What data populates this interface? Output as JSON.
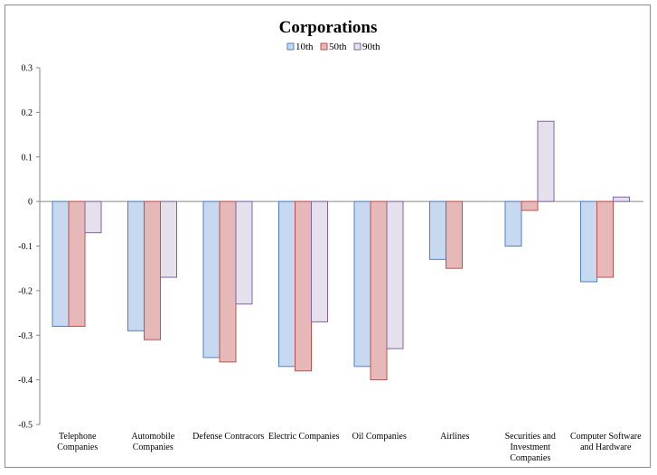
{
  "chart_data": {
    "type": "bar",
    "title": "Corporations",
    "xlabel": "",
    "ylabel": "",
    "ylim": [
      -0.5,
      0.3
    ],
    "yticks": [
      "0.3",
      "0.2",
      "0.1",
      "0",
      "-0.1",
      "-0.2",
      "-0.3",
      "-0.4",
      "-0.5"
    ],
    "ytick_values": [
      0.3,
      0.2,
      0.1,
      0,
      -0.1,
      -0.2,
      -0.3,
      -0.4,
      -0.5
    ],
    "grid": false,
    "legend_position": "top-center",
    "categories": [
      [
        "Telephone",
        "Companies"
      ],
      [
        "Automobile",
        "Companies"
      ],
      [
        "Defense Contracors"
      ],
      [
        "Electric Companies"
      ],
      [
        "Oil Companies"
      ],
      [
        "Airlines"
      ],
      [
        "Securities and",
        "Investment",
        "Companies"
      ],
      [
        "Computer Software",
        "and Hardware"
      ]
    ],
    "series": [
      {
        "name": "10th",
        "fill": "#c6d9f1",
        "stroke": "#4f81bd",
        "values": [
          -0.28,
          -0.29,
          -0.35,
          -0.37,
          -0.37,
          -0.13,
          -0.1,
          -0.18
        ]
      },
      {
        "name": "50th",
        "fill": "#e6b9b8",
        "stroke": "#c0504d",
        "values": [
          -0.28,
          -0.31,
          -0.36,
          -0.38,
          -0.4,
          -0.15,
          -0.02,
          -0.17
        ]
      },
      {
        "name": "90th",
        "fill": "#e5e0ec",
        "stroke": "#8064a2",
        "values": [
          -0.07,
          -0.17,
          -0.23,
          -0.27,
          -0.33,
          0,
          0.18,
          0.01
        ]
      }
    ]
  }
}
